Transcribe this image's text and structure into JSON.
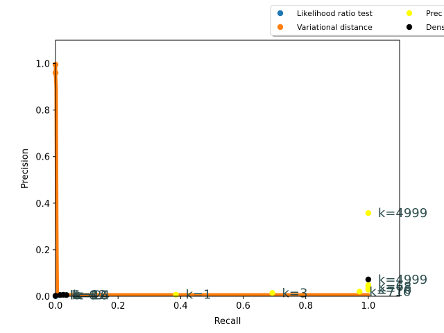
{
  "chart_data": {
    "type": "scatter",
    "title": "",
    "xlabel": "Recall",
    "ylabel": "Precision",
    "xlim": [
      0.0,
      1.1
    ],
    "ylim": [
      0.0,
      1.1
    ],
    "xticks": [
      "0.0",
      "0.2",
      "0.4",
      "0.6",
      "0.8",
      "1.0"
    ],
    "xtick_values": [
      0.0,
      0.2,
      0.4,
      0.6,
      0.8,
      1.0
    ],
    "yticks": [
      "0.0",
      "0.2",
      "0.4",
      "0.6",
      "0.8",
      "1.0"
    ],
    "ytick_values": [
      0.0,
      0.2,
      0.4,
      0.6,
      0.8,
      1.0
    ],
    "grid": false,
    "legend_position": "top-right, outside plot area",
    "legend": [
      {
        "label": "Likelihood ratio test",
        "color": "#1f77b4"
      },
      {
        "label": "Variational distance",
        "color": "#ff7f0e"
      },
      {
        "label": "Prec",
        "color": "#ffff00"
      },
      {
        "label": "Dens",
        "color": "#000000"
      }
    ],
    "series": [
      {
        "name": "Likelihood ratio test",
        "color": "#1f77b4",
        "points": [
          [
            0.0,
            0.0
          ],
          [
            0.005,
            0.005
          ],
          [
            0.01,
            0.006
          ]
        ]
      },
      {
        "name": "Variational distance",
        "color": "#ff7f0e",
        "segments": [
          [
            [
              0.0,
              0.995
            ],
            [
              0.0,
              0.95
            ],
            [
              0.002,
              0.9
            ],
            [
              0.003,
              0.6
            ],
            [
              0.004,
              0.3
            ],
            [
              0.005,
              0.1
            ],
            [
              0.006,
              0.006
            ]
          ],
          [
            [
              0.006,
              0.006
            ],
            [
              1.0,
              0.006
            ]
          ]
        ],
        "points": [
          [
            0.0,
            0.995
          ],
          [
            0.0,
            0.96
          ]
        ]
      },
      {
        "name": "Prec",
        "color": "#ffff00",
        "points": [
          [
            1.0,
            0.357
          ],
          [
            0.385,
            0.007
          ],
          [
            0.693,
            0.014
          ],
          [
            0.972,
            0.02
          ],
          [
            1.0,
            0.028
          ],
          [
            1.0,
            0.033
          ],
          [
            1.0,
            0.041
          ],
          [
            1.0,
            0.048
          ]
        ]
      },
      {
        "name": "Dens",
        "color": "#000000",
        "points": [
          [
            1.0,
            0.072
          ],
          [
            0.0,
            0.002
          ],
          [
            0.015,
            0.005
          ],
          [
            0.025,
            0.006
          ],
          [
            0.035,
            0.005
          ]
        ]
      }
    ],
    "annotations": [
      {
        "text": "k=4999",
        "x": 1.0,
        "y": 0.357
      },
      {
        "text": "k=4999",
        "x": 1.0,
        "y": 0.072
      },
      {
        "text": "k=1",
        "x": 0.385,
        "y": 0.007
      },
      {
        "text": "k=3",
        "x": 0.693,
        "y": 0.014
      },
      {
        "text": "k=716",
        "x": 0.972,
        "y": 0.02
      },
      {
        "text": "k=76",
        "x": 1.0,
        "y": 0.028
      },
      {
        "text": "k=68",
        "x": 1.0,
        "y": 0.041
      },
      {
        "text": "k=24",
        "x": 0.035,
        "y": 0.005
      },
      {
        "text": "k=16",
        "x": 0.03,
        "y": 0.005
      },
      {
        "text": "k=12",
        "x": 0.025,
        "y": 0.006
      },
      {
        "text": "k=8",
        "x": 0.02,
        "y": 0.005
      },
      {
        "text": "k=4",
        "x": 0.015,
        "y": 0.004
      }
    ]
  }
}
